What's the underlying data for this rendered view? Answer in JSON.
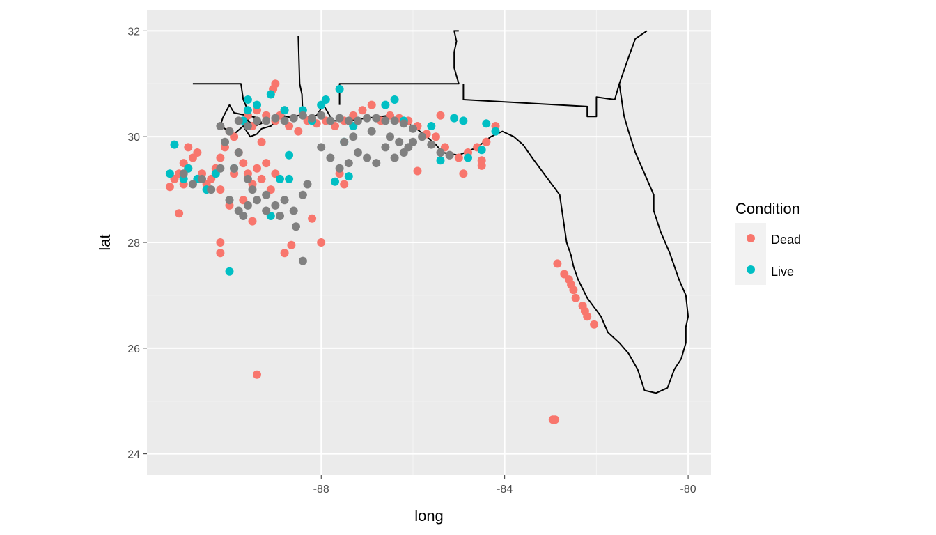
{
  "chart_data": {
    "type": "scatter",
    "title": "",
    "xlabel": "long",
    "ylabel": "lat",
    "xlim": [
      -91.8,
      -79.5
    ],
    "ylim": [
      23.6,
      32.4
    ],
    "x_ticks": [
      -88,
      -84,
      -80
    ],
    "y_ticks": [
      24,
      26,
      28,
      30,
      32
    ],
    "x_tick_labels": [
      "-88",
      "-84",
      "-80"
    ],
    "y_tick_labels": [
      "24",
      "26",
      "28",
      "30",
      "32"
    ],
    "grid": true,
    "legend": {
      "title": "Condition",
      "position": "right",
      "entries": [
        {
          "label": "Dead",
          "color": "#F8766D"
        },
        {
          "label": "Live",
          "color": "#00BFC4"
        }
      ]
    },
    "colors": {
      "Dead": "#F8766D",
      "Live": "#00BFC4",
      "Unknown": "#808080"
    },
    "outline": [
      [
        [
          -90.8,
          31.0
        ],
        [
          -89.75,
          31.0
        ],
        [
          -89.7,
          30.7
        ],
        [
          -89.6,
          30.5
        ],
        [
          -89.6,
          30.3
        ],
        [
          -89.45,
          30.2
        ],
        [
          -89.3,
          30.25
        ],
        [
          -89.35,
          30.35
        ],
        [
          -89.9,
          30.45
        ],
        [
          -90.0,
          30.6
        ],
        [
          -90.15,
          30.35
        ],
        [
          -90.2,
          30.2
        ],
        [
          -89.9,
          30.05
        ],
        [
          -89.7,
          30.2
        ],
        [
          -89.55,
          30.0
        ],
        [
          -89.4,
          30.05
        ],
        [
          -89.3,
          30.15
        ],
        [
          -89.1,
          30.2
        ],
        [
          -88.85,
          30.4
        ],
        [
          -88.6,
          30.35
        ],
        [
          -88.5,
          30.4
        ],
        [
          -88.4,
          30.35
        ]
      ],
      [
        [
          -88.5,
          31.9
        ],
        [
          -88.47,
          31.0
        ],
        [
          -88.42,
          30.8
        ],
        [
          -88.4,
          30.35
        ],
        [
          -88.1,
          30.4
        ],
        [
          -87.95,
          30.6
        ],
        [
          -87.75,
          30.3
        ],
        [
          -87.5,
          30.3
        ]
      ],
      [
        [
          -87.6,
          30.6
        ],
        [
          -87.6,
          31.0
        ],
        [
          -85.0,
          31.0
        ],
        [
          -85.1,
          31.3
        ],
        [
          -85.1,
          31.6
        ],
        [
          -85.05,
          31.8
        ],
        [
          -85.1,
          32.0
        ],
        [
          -85.0,
          32.0
        ]
      ],
      [
        [
          -84.9,
          31.0
        ],
        [
          -84.9,
          30.7
        ],
        [
          -82.2,
          30.57
        ],
        [
          -82.2,
          30.38
        ],
        [
          -82.0,
          30.38
        ],
        [
          -82.0,
          30.75
        ],
        [
          -81.6,
          30.7
        ],
        [
          -81.5,
          31.0
        ],
        [
          -81.3,
          31.5
        ],
        [
          -81.15,
          31.85
        ],
        [
          -80.9,
          32.0
        ],
        [
          -80.9,
          32.0
        ]
      ],
      [
        [
          -87.5,
          30.3
        ],
        [
          -87.0,
          30.35
        ],
        [
          -86.5,
          30.4
        ],
        [
          -86.0,
          30.2
        ],
        [
          -85.7,
          30.0
        ],
        [
          -85.5,
          29.85
        ],
        [
          -85.35,
          29.7
        ],
        [
          -85.0,
          29.65
        ],
        [
          -84.6,
          29.8
        ],
        [
          -84.3,
          30.0
        ],
        [
          -84.05,
          30.1
        ],
        [
          -83.8,
          30.0
        ],
        [
          -83.6,
          29.85
        ],
        [
          -83.4,
          29.6
        ],
        [
          -83.1,
          29.25
        ],
        [
          -82.8,
          28.9
        ],
        [
          -82.75,
          28.6
        ],
        [
          -82.7,
          28.3
        ],
        [
          -82.65,
          28.0
        ],
        [
          -82.55,
          27.75
        ],
        [
          -82.5,
          27.55
        ],
        [
          -82.4,
          27.3
        ],
        [
          -82.2,
          26.95
        ],
        [
          -81.9,
          26.6
        ],
        [
          -81.75,
          26.3
        ],
        [
          -81.5,
          26.1
        ],
        [
          -81.3,
          25.9
        ],
        [
          -81.1,
          25.6
        ],
        [
          -80.95,
          25.2
        ],
        [
          -80.7,
          25.15
        ],
        [
          -80.45,
          25.25
        ],
        [
          -80.3,
          25.6
        ],
        [
          -80.15,
          25.8
        ],
        [
          -80.05,
          26.1
        ],
        [
          -80.05,
          26.4
        ],
        [
          -80.0,
          26.6
        ],
        [
          -80.05,
          27.0
        ],
        [
          -80.2,
          27.3
        ],
        [
          -80.4,
          27.8
        ],
        [
          -80.6,
          28.2
        ],
        [
          -80.75,
          28.6
        ],
        [
          -80.75,
          28.9
        ],
        [
          -80.95,
          29.3
        ],
        [
          -81.15,
          29.7
        ],
        [
          -81.3,
          30.1
        ],
        [
          -81.4,
          30.4
        ],
        [
          -81.45,
          30.7
        ],
        [
          -81.5,
          31.0
        ]
      ]
    ],
    "series": [
      {
        "name": "Dead",
        "points": [
          [
            -91.3,
            29.05
          ],
          [
            -91.2,
            29.2
          ],
          [
            -91.1,
            29.3
          ],
          [
            -91.0,
            29.5
          ],
          [
            -90.9,
            29.4
          ],
          [
            -90.8,
            29.6
          ],
          [
            -90.7,
            29.7
          ],
          [
            -90.6,
            29.3
          ],
          [
            -90.5,
            29.1
          ],
          [
            -90.4,
            29.2
          ],
          [
            -90.3,
            29.4
          ],
          [
            -90.2,
            29.6
          ],
          [
            -90.1,
            29.8
          ],
          [
            -90.0,
            30.1
          ],
          [
            -89.9,
            30.0
          ],
          [
            -89.8,
            29.7
          ],
          [
            -89.7,
            29.5
          ],
          [
            -89.6,
            29.3
          ],
          [
            -89.5,
            29.1
          ],
          [
            -89.4,
            29.4
          ],
          [
            -89.3,
            29.2
          ],
          [
            -89.2,
            29.5
          ],
          [
            -89.1,
            29.0
          ],
          [
            -89.0,
            29.3
          ],
          [
            -89.3,
            29.9
          ],
          [
            -89.5,
            30.2
          ],
          [
            -89.6,
            30.4
          ],
          [
            -89.4,
            30.5
          ],
          [
            -89.2,
            30.4
          ],
          [
            -89.0,
            30.3
          ],
          [
            -88.9,
            30.4
          ],
          [
            -88.8,
            30.5
          ],
          [
            -89.05,
            30.9
          ],
          [
            -89.0,
            31.0
          ],
          [
            -90.9,
            29.8
          ],
          [
            -91.0,
            29.1
          ],
          [
            -90.2,
            29.0
          ],
          [
            -89.7,
            28.8
          ],
          [
            -90.0,
            28.7
          ],
          [
            -89.9,
            29.3
          ],
          [
            -91.1,
            28.55
          ],
          [
            -90.2,
            28.0
          ],
          [
            -90.2,
            27.8
          ],
          [
            -89.5,
            28.4
          ],
          [
            -88.8,
            27.8
          ],
          [
            -88.65,
            27.95
          ],
          [
            -88.2,
            28.45
          ],
          [
            -88.0,
            28.0
          ],
          [
            -89.4,
            25.5
          ],
          [
            -88.7,
            30.2
          ],
          [
            -88.5,
            30.1
          ],
          [
            -88.3,
            30.3
          ],
          [
            -88.1,
            30.25
          ],
          [
            -87.9,
            30.3
          ],
          [
            -87.7,
            30.2
          ],
          [
            -87.5,
            30.3
          ],
          [
            -87.3,
            30.4
          ],
          [
            -87.1,
            30.5
          ],
          [
            -86.9,
            30.6
          ],
          [
            -86.7,
            30.3
          ],
          [
            -86.5,
            30.4
          ],
          [
            -86.3,
            30.35
          ],
          [
            -86.1,
            30.3
          ],
          [
            -85.9,
            30.2
          ],
          [
            -85.7,
            30.05
          ],
          [
            -85.5,
            30.0
          ],
          [
            -85.3,
            29.8
          ],
          [
            -85.2,
            29.65
          ],
          [
            -85.0,
            29.6
          ],
          [
            -84.8,
            29.7
          ],
          [
            -84.6,
            29.8
          ],
          [
            -84.4,
            29.9
          ],
          [
            -84.2,
            30.2
          ],
          [
            -85.4,
            30.4
          ],
          [
            -87.6,
            29.3
          ],
          [
            -87.5,
            29.1
          ],
          [
            -85.9,
            29.35
          ],
          [
            -84.9,
            29.3
          ],
          [
            -84.5,
            29.45
          ],
          [
            -84.5,
            29.55
          ],
          [
            -84.4,
            29.9
          ],
          [
            -82.85,
            27.6
          ],
          [
            -82.7,
            27.4
          ],
          [
            -82.6,
            27.3
          ],
          [
            -82.55,
            27.2
          ],
          [
            -82.5,
            27.1
          ],
          [
            -82.45,
            26.95
          ],
          [
            -82.3,
            26.8
          ],
          [
            -82.25,
            26.7
          ],
          [
            -82.2,
            26.6
          ],
          [
            -82.05,
            26.45
          ],
          [
            -82.95,
            24.65
          ],
          [
            -82.9,
            24.65
          ]
        ]
      },
      {
        "name": "Live",
        "points": [
          [
            -91.3,
            29.3
          ],
          [
            -91.2,
            29.85
          ],
          [
            -91.0,
            29.2
          ],
          [
            -90.9,
            29.4
          ],
          [
            -90.7,
            29.2
          ],
          [
            -90.5,
            29.0
          ],
          [
            -90.3,
            29.3
          ],
          [
            -89.9,
            29.4
          ],
          [
            -89.7,
            30.3
          ],
          [
            -89.6,
            30.7
          ],
          [
            -89.4,
            30.6
          ],
          [
            -89.1,
            30.8
          ],
          [
            -88.8,
            30.5
          ],
          [
            -88.7,
            29.65
          ],
          [
            -88.9,
            29.2
          ],
          [
            -89.1,
            28.5
          ],
          [
            -90.0,
            27.45
          ],
          [
            -88.4,
            30.5
          ],
          [
            -88.2,
            30.3
          ],
          [
            -88.0,
            30.6
          ],
          [
            -87.9,
            30.7
          ],
          [
            -87.6,
            30.9
          ],
          [
            -87.5,
            29.9
          ],
          [
            -87.4,
            29.25
          ],
          [
            -87.3,
            30.2
          ],
          [
            -86.6,
            30.6
          ],
          [
            -86.4,
            30.7
          ],
          [
            -86.2,
            30.3
          ],
          [
            -85.6,
            30.2
          ],
          [
            -85.4,
            29.55
          ],
          [
            -85.1,
            30.35
          ],
          [
            -84.9,
            30.3
          ],
          [
            -84.5,
            29.75
          ],
          [
            -84.4,
            30.25
          ],
          [
            -84.2,
            30.1
          ],
          [
            -84.8,
            29.6
          ],
          [
            -87.7,
            29.15
          ],
          [
            -88.7,
            29.2
          ],
          [
            -89.6,
            30.5
          ]
        ]
      },
      {
        "name": "",
        "color_key": "Unknown",
        "points": [
          [
            -90.2,
            30.2
          ],
          [
            -90.0,
            30.1
          ],
          [
            -89.8,
            30.3
          ],
          [
            -89.6,
            30.2
          ],
          [
            -89.4,
            30.3
          ],
          [
            -89.2,
            30.3
          ],
          [
            -89.0,
            30.35
          ],
          [
            -88.8,
            30.3
          ],
          [
            -88.6,
            30.35
          ],
          [
            -88.4,
            30.4
          ],
          [
            -88.2,
            30.35
          ],
          [
            -88.0,
            30.4
          ],
          [
            -87.8,
            30.3
          ],
          [
            -87.6,
            30.35
          ],
          [
            -87.4,
            30.3
          ],
          [
            -87.2,
            30.3
          ],
          [
            -87.0,
            30.35
          ],
          [
            -86.8,
            30.35
          ],
          [
            -86.6,
            30.3
          ],
          [
            -86.4,
            30.3
          ],
          [
            -86.2,
            30.25
          ],
          [
            -86.0,
            30.15
          ],
          [
            -85.8,
            30.0
          ],
          [
            -85.6,
            29.85
          ],
          [
            -85.4,
            29.7
          ],
          [
            -85.2,
            29.65
          ],
          [
            -90.1,
            29.9
          ],
          [
            -89.8,
            29.7
          ],
          [
            -89.9,
            29.4
          ],
          [
            -89.6,
            29.2
          ],
          [
            -89.5,
            29.0
          ],
          [
            -90.0,
            28.8
          ],
          [
            -89.8,
            28.6
          ],
          [
            -89.6,
            28.7
          ],
          [
            -89.4,
            28.8
          ],
          [
            -89.2,
            28.6
          ],
          [
            -89.0,
            28.7
          ],
          [
            -88.8,
            28.8
          ],
          [
            -88.6,
            28.6
          ],
          [
            -88.4,
            28.9
          ],
          [
            -88.3,
            29.1
          ],
          [
            -89.7,
            28.5
          ],
          [
            -89.2,
            28.9
          ],
          [
            -88.9,
            28.5
          ],
          [
            -88.55,
            28.3
          ],
          [
            -88.4,
            27.65
          ],
          [
            -90.6,
            29.2
          ],
          [
            -90.8,
            29.1
          ],
          [
            -91.0,
            29.3
          ],
          [
            -90.4,
            29.0
          ],
          [
            -90.2,
            29.4
          ],
          [
            -88.0,
            29.8
          ],
          [
            -87.8,
            29.6
          ],
          [
            -87.6,
            29.4
          ],
          [
            -87.4,
            29.5
          ],
          [
            -87.2,
            29.7
          ],
          [
            -87.0,
            29.6
          ],
          [
            -86.8,
            29.5
          ],
          [
            -86.6,
            29.8
          ],
          [
            -86.4,
            29.6
          ],
          [
            -86.2,
            29.7
          ],
          [
            -86.0,
            29.9
          ],
          [
            -87.5,
            29.9
          ],
          [
            -87.3,
            30.0
          ],
          [
            -86.9,
            30.1
          ],
          [
            -86.5,
            30.0
          ],
          [
            -86.3,
            29.9
          ],
          [
            -86.1,
            29.8
          ]
        ]
      }
    ]
  }
}
